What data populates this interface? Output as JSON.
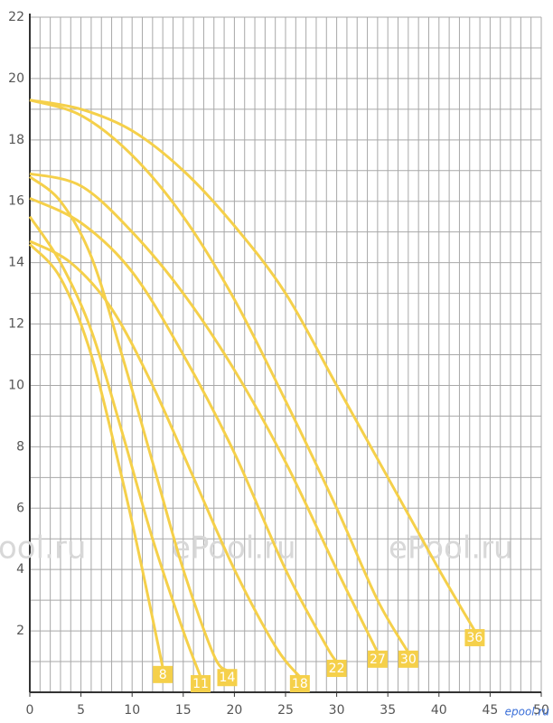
{
  "chart_data": {
    "type": "line",
    "xlim": [
      0,
      50
    ],
    "ylim": [
      0,
      22
    ],
    "xticks": [
      0,
      5,
      10,
      15,
      20,
      25,
      30,
      35,
      40,
      45,
      50
    ],
    "yticks": [
      2,
      4,
      6,
      8,
      10,
      12,
      14,
      16,
      18,
      20,
      22
    ],
    "xgrid": [
      1,
      2,
      3,
      4,
      5,
      6,
      7,
      8,
      9,
      10,
      11,
      12,
      13,
      14,
      15,
      16,
      17,
      18,
      19,
      20,
      21,
      22,
      23,
      24,
      25,
      26,
      27,
      28,
      29,
      30,
      31,
      32,
      33,
      34,
      35,
      36,
      37,
      38,
      39,
      40,
      41,
      42,
      43,
      44,
      45,
      46,
      47,
      48,
      49,
      50
    ],
    "ygrid": [
      1,
      2,
      3,
      4,
      5,
      6,
      7,
      8,
      9,
      10,
      11,
      12,
      13,
      14,
      15,
      16,
      17,
      18,
      19,
      20,
      21,
      22
    ],
    "grid": true,
    "watermarks": [
      "ool.ru",
      "ePool.ru",
      "ePool.ru",
      "epool.ru"
    ],
    "series": [
      {
        "name": "8",
        "color": "#f5d04a",
        "x": [
          0,
          3,
          6,
          9,
          11,
          13
        ],
        "values": [
          14.6,
          13.5,
          11,
          7,
          4,
          0.8
        ]
      },
      {
        "name": "11",
        "color": "#f5d04a",
        "x": [
          0,
          3,
          6,
          9,
          12,
          15,
          16.7
        ],
        "values": [
          15.5,
          14,
          11.8,
          8.5,
          5,
          2,
          0.5
        ]
      },
      {
        "name": "14",
        "color": "#f5d04a",
        "x": [
          0,
          3,
          6,
          9,
          12,
          15,
          18,
          19.3
        ],
        "values": [
          16.8,
          16,
          14.2,
          11,
          7.5,
          4,
          1.2,
          0.7
        ]
      },
      {
        "name": "18",
        "color": "#f5d04a",
        "x": [
          0,
          4,
          8,
          12,
          16,
          20,
          24,
          26.4
        ],
        "values": [
          14.7,
          14,
          12.5,
          10,
          7,
          4,
          1.5,
          0.5
        ]
      },
      {
        "name": "22",
        "color": "#f5d04a",
        "x": [
          0,
          5,
          10,
          15,
          20,
          25,
          29,
          30
        ],
        "values": [
          16.1,
          15.3,
          13.7,
          11,
          7.8,
          4,
          1.5,
          1
        ]
      },
      {
        "name": "27",
        "color": "#f5d04a",
        "x": [
          0,
          5,
          10,
          15,
          20,
          25,
          30,
          34
        ],
        "values": [
          16.9,
          16.5,
          15,
          13,
          10.5,
          7.5,
          4,
          1.3
        ]
      },
      {
        "name": "30",
        "color": "#f5d04a",
        "x": [
          0,
          5,
          10,
          15,
          20,
          25,
          30,
          34,
          37
        ],
        "values": [
          19.3,
          18.8,
          17.5,
          15.5,
          12.8,
          9.5,
          6,
          3,
          1.3
        ]
      },
      {
        "name": "36",
        "color": "#f5d04a",
        "x": [
          0,
          5,
          10,
          15,
          20,
          25,
          30,
          35,
          40,
          43.5
        ],
        "values": [
          19.3,
          19,
          18.3,
          17,
          15.2,
          13,
          10,
          7,
          4,
          2
        ]
      }
    ]
  }
}
